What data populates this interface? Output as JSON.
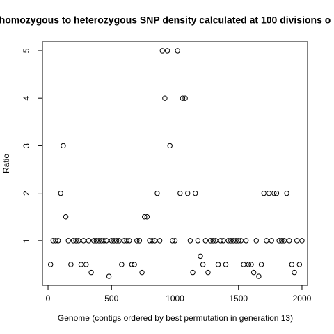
{
  "chart_data": {
    "type": "scatter",
    "title": "homozygous to heterozygous SNP density calculated at 100 divisions o",
    "x_label": "Genome (contigs ordered by best permutation in generation 13)",
    "y_label": "Ratio",
    "xlim": [
      -44,
      2044
    ],
    "ylim": [
      0.06,
      5.19
    ],
    "xticks": [
      0,
      500,
      1000,
      1500,
      2000
    ],
    "yticks": [
      1,
      2,
      3,
      4,
      5
    ],
    "color": "#000000",
    "x": [
      20,
      40,
      60,
      80,
      100,
      120,
      140,
      160,
      180,
      200,
      220,
      240,
      260,
      280,
      300,
      320,
      340,
      360,
      380,
      400,
      420,
      440,
      460,
      480,
      500,
      520,
      540,
      560,
      580,
      600,
      620,
      640,
      660,
      680,
      700,
      720,
      740,
      760,
      780,
      800,
      820,
      840,
      860,
      880,
      900,
      920,
      940,
      960,
      980,
      1000,
      1020,
      1040,
      1060,
      1080,
      1100,
      1120,
      1140,
      1160,
      1180,
      1200,
      1220,
      1240,
      1260,
      1280,
      1300,
      1320,
      1340,
      1360,
      1380,
      1400,
      1420,
      1440,
      1460,
      1480,
      1500,
      1520,
      1540,
      1560,
      1580,
      1600,
      1620,
      1640,
      1660,
      1680,
      1700,
      1720,
      1740,
      1760,
      1780,
      1800,
      1820,
      1840,
      1860,
      1880,
      1900,
      1920,
      1940,
      1960,
      1980,
      2000
    ],
    "values": [
      0.5,
      1,
      1,
      1,
      2,
      3,
      1.5,
      1,
      0.5,
      1,
      1,
      1,
      0.5,
      1,
      0.5,
      1,
      0.33,
      1,
      1,
      1,
      1,
      1,
      1,
      0.25,
      1,
      1,
      1,
      1,
      0.5,
      1,
      1,
      1,
      0.5,
      0.5,
      1,
      1,
      0.33,
      1.5,
      1.5,
      1,
      1,
      1,
      2,
      1,
      5,
      4,
      5,
      3,
      1,
      1,
      5,
      2,
      4,
      4,
      2,
      1,
      0.33,
      2,
      1,
      0.67,
      0.5,
      1,
      0.33,
      1,
      1,
      1,
      0.5,
      1,
      1,
      0.5,
      1,
      1,
      1,
      1,
      1,
      1,
      0.5,
      1,
      0.5,
      0.5,
      0.33,
      1,
      0.25,
      0.5,
      2,
      1,
      2,
      1,
      2,
      2,
      1,
      1,
      1,
      2,
      1,
      0.5,
      0.33,
      1,
      0.5,
      1
    ]
  }
}
